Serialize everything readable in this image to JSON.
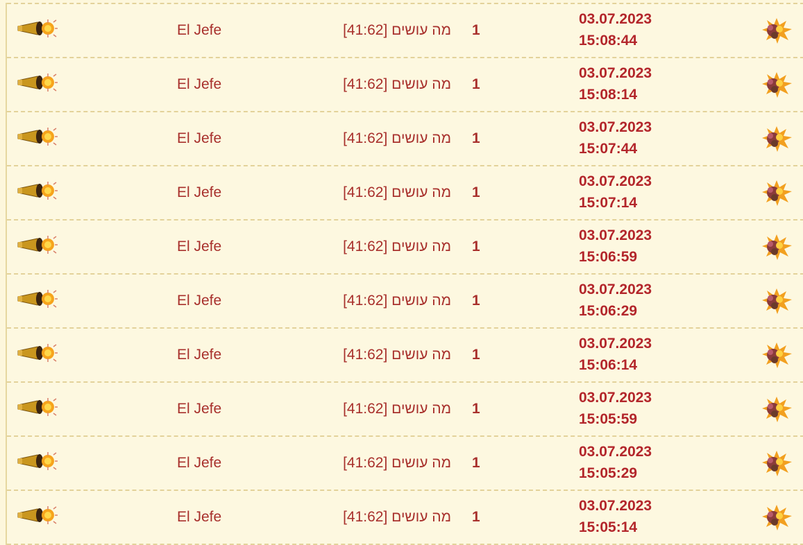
{
  "colors": {
    "background": "#fdf8e0",
    "text": "#a8302c",
    "border": "#e3d29a"
  },
  "icons": {
    "left": "cannon-icon",
    "right": "explosion-icon"
  },
  "rows": [
    {
      "name": "El Jefe",
      "message": "מה עושים [41:62]",
      "count": "1",
      "date": "03.07.2023",
      "time": "15:08:44"
    },
    {
      "name": "El Jefe",
      "message": "מה עושים [41:62]",
      "count": "1",
      "date": "03.07.2023",
      "time": "15:08:14"
    },
    {
      "name": "El Jefe",
      "message": "מה עושים [41:62]",
      "count": "1",
      "date": "03.07.2023",
      "time": "15:07:44"
    },
    {
      "name": "El Jefe",
      "message": "מה עושים [41:62]",
      "count": "1",
      "date": "03.07.2023",
      "time": "15:07:14"
    },
    {
      "name": "El Jefe",
      "message": "מה עושים [41:62]",
      "count": "1",
      "date": "03.07.2023",
      "time": "15:06:59"
    },
    {
      "name": "El Jefe",
      "message": "מה עושים [41:62]",
      "count": "1",
      "date": "03.07.2023",
      "time": "15:06:29"
    },
    {
      "name": "El Jefe",
      "message": "מה עושים [41:62]",
      "count": "1",
      "date": "03.07.2023",
      "time": "15:06:14"
    },
    {
      "name": "El Jefe",
      "message": "מה עושים [41:62]",
      "count": "1",
      "date": "03.07.2023",
      "time": "15:05:59"
    },
    {
      "name": "El Jefe",
      "message": "מה עושים [41:62]",
      "count": "1",
      "date": "03.07.2023",
      "time": "15:05:29"
    },
    {
      "name": "El Jefe",
      "message": "מה עושים [41:62]",
      "count": "1",
      "date": "03.07.2023",
      "time": "15:05:14"
    }
  ]
}
